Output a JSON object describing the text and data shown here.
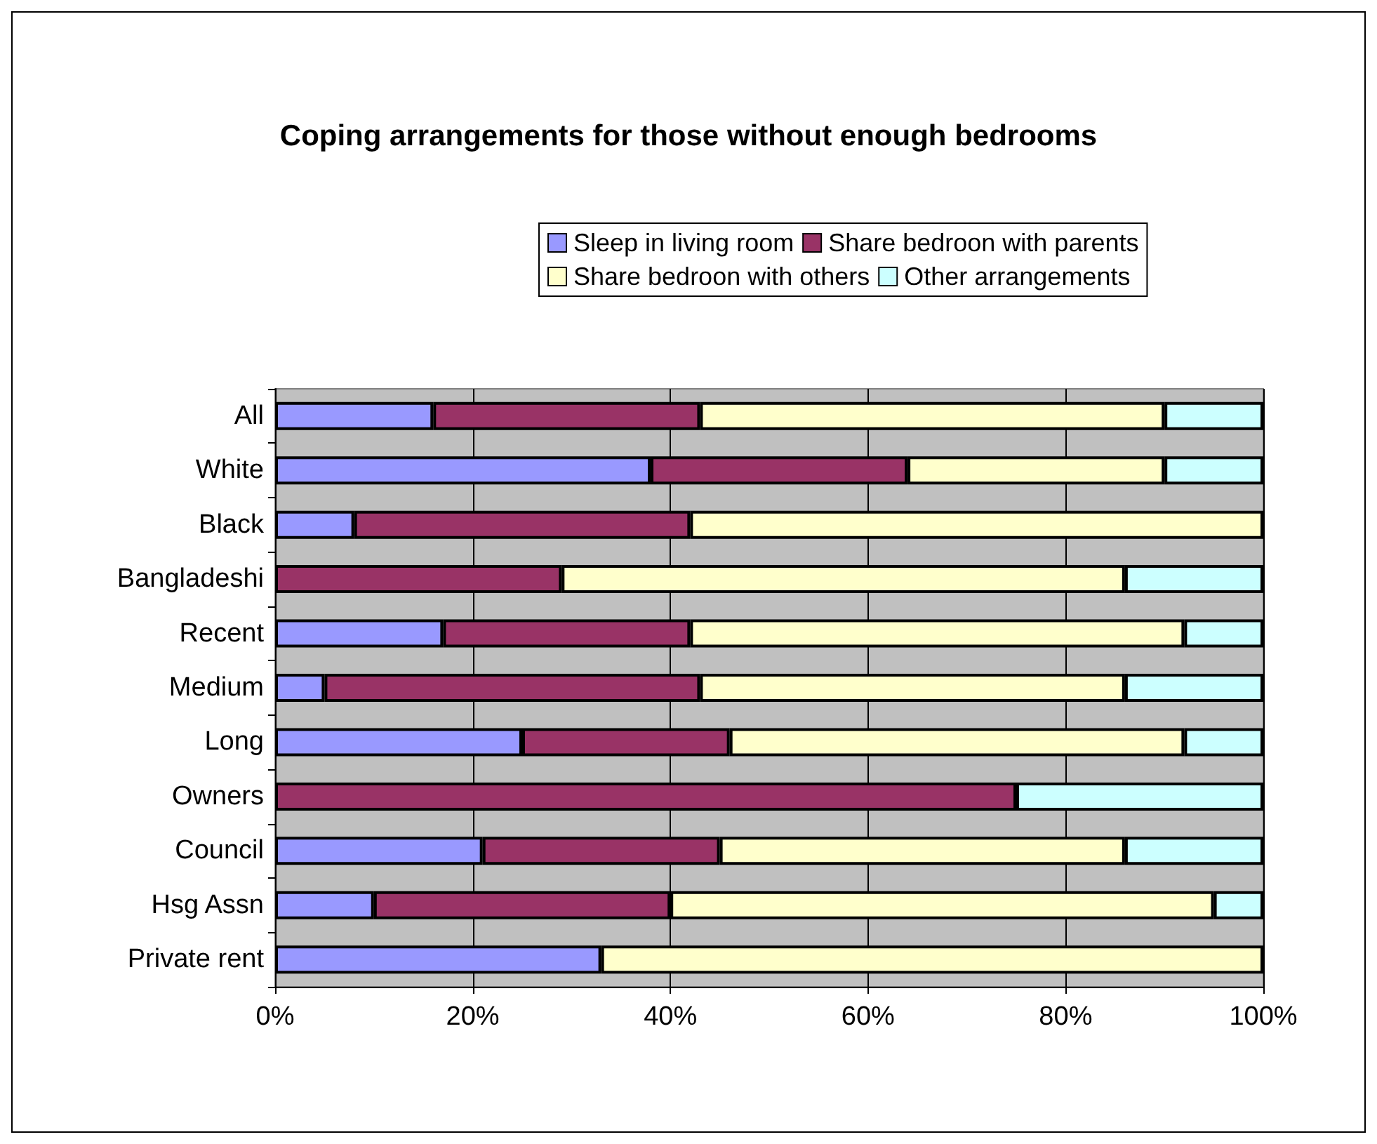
{
  "chart_data": {
    "type": "bar",
    "title": "Coping arrangements for those without enough bedrooms",
    "orientation": "horizontal",
    "stacked": true,
    "categories": [
      "All",
      "White",
      "Black",
      "Bangladeshi",
      "Recent",
      "Medium",
      "Long",
      "Owners",
      "Council",
      "Hsg Assn",
      "Private rent"
    ],
    "series": [
      {
        "name": "Sleep in living room",
        "color": "#9999ff",
        "values": [
          16,
          38,
          8,
          0,
          17,
          5,
          25,
          0,
          21,
          10,
          33
        ]
      },
      {
        "name": "Share bedroon with parents",
        "color": "#993366",
        "values": [
          27,
          26,
          34,
          29,
          25,
          38,
          21,
          75,
          24,
          30,
          0
        ]
      },
      {
        "name": "Share bedroon with others",
        "color": "#ffffcc",
        "values": [
          47,
          26,
          58,
          57,
          50,
          43,
          46,
          0,
          41,
          55,
          67
        ]
      },
      {
        "name": "Other arrangements",
        "color": "#ccffff",
        "values": [
          10,
          10,
          0,
          14,
          8,
          14,
          8,
          25,
          14,
          5,
          0
        ]
      }
    ],
    "xlim": [
      0,
      100
    ],
    "xticks": [
      {
        "value": 0,
        "label": "0%"
      },
      {
        "value": 20,
        "label": "20%"
      },
      {
        "value": 40,
        "label": "40%"
      },
      {
        "value": 60,
        "label": "60%"
      },
      {
        "value": 80,
        "label": "80%"
      },
      {
        "value": 100,
        "label": "100%"
      }
    ],
    "grid": "x",
    "legend": "top"
  }
}
